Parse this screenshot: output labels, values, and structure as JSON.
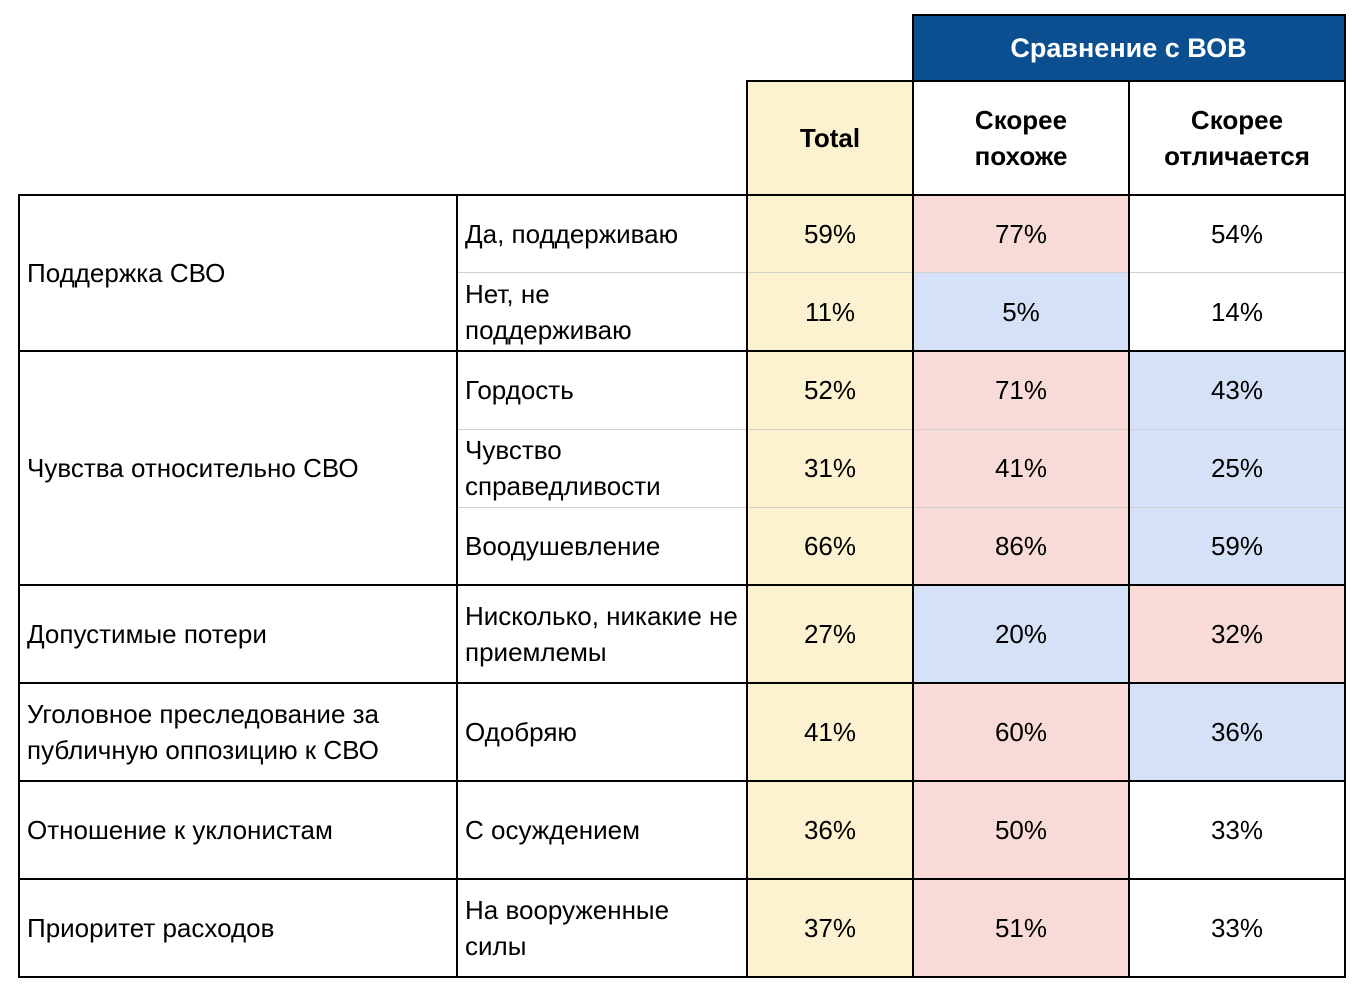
{
  "header": {
    "group_title": "Сравнение с ВОВ",
    "total": "Total",
    "col_similar": "Скорее похоже",
    "col_differs": "Скорее отличается"
  },
  "colors": {
    "header_blue": "#0b4f91",
    "total_yellow": "#fdf2cf",
    "highlight_red": "#f8dad6",
    "highlight_blue": "#d4e1f6"
  },
  "rows": [
    {
      "category": "Поддержка СВО",
      "answer": "Да, поддерживаю",
      "total": "59%",
      "similar": "77%",
      "differs": "54%"
    },
    {
      "category": "",
      "answer": "Нет, не поддерживаю",
      "total": "11%",
      "similar": "5%",
      "differs": "14%"
    },
    {
      "category": "Чувства относительно СВО",
      "answer": "Гордость",
      "total": "52%",
      "similar": "71%",
      "differs": "43%"
    },
    {
      "category": "",
      "answer": "Чувство справедливости",
      "total": "31%",
      "similar": "41%",
      "differs": "25%"
    },
    {
      "category": "",
      "answer": "Воодушевление",
      "total": "66%",
      "similar": "86%",
      "differs": "59%"
    },
    {
      "category": "Допустимые потери",
      "answer": "Нисколько, никакие не приемлемы",
      "total": "27%",
      "similar": "20%",
      "differs": "32%"
    },
    {
      "category": "Уголовное преследование за публичную оппозицию к СВО",
      "answer": "Одобряю",
      "total": "41%",
      "similar": "60%",
      "differs": "36%"
    },
    {
      "category": "Отношение к уклонистам",
      "answer": "С осуждением",
      "total": "36%",
      "similar": "50%",
      "differs": "33%"
    },
    {
      "category": "Приоритет расходов",
      "answer": "На вооруженные силы",
      "total": "37%",
      "similar": "51%",
      "differs": "33%"
    }
  ]
}
